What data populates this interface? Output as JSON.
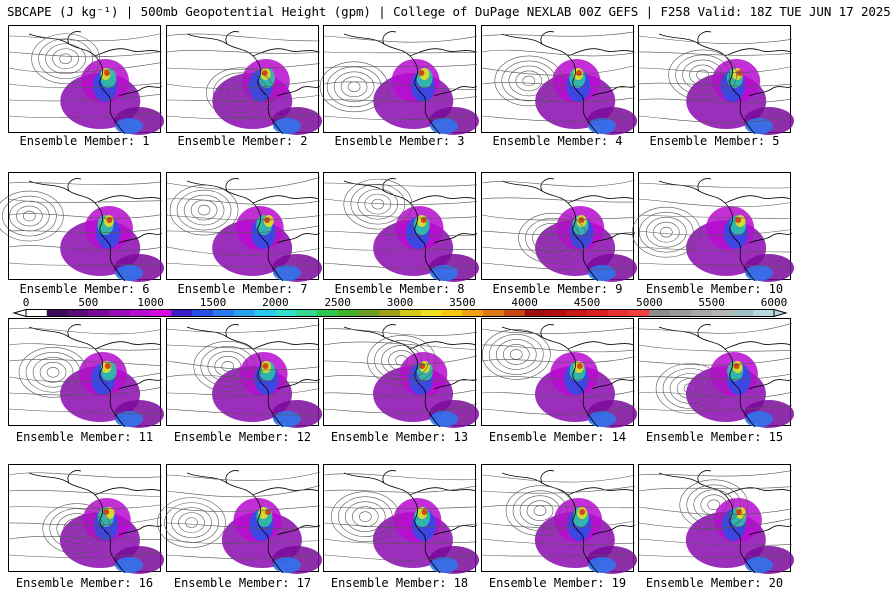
{
  "title": "SBCAPE (J kg⁻¹) | 500mb Geopotential Height (gpm) | College of DuPage NEXLAB 00Z GEFS | F258 Valid: 18Z TUE JUN 17 2025",
  "members": [
    "Ensemble Member: 1",
    "Ensemble Member: 2",
    "Ensemble Member: 3",
    "Ensemble Member: 4",
    "Ensemble Member: 5",
    "Ensemble Member: 6",
    "Ensemble Member: 7",
    "Ensemble Member: 8",
    "Ensemble Member: 9",
    "Ensemble Member: 10",
    "Ensemble Member: 11",
    "Ensemble Member: 12",
    "Ensemble Member: 13",
    "Ensemble Member: 14",
    "Ensemble Member: 15",
    "Ensemble Member: 16",
    "Ensemble Member: 17",
    "Ensemble Member: 18",
    "Ensemble Member: 19",
    "Ensemble Member: 20"
  ],
  "colorbar": {
    "labels": [
      "0",
      "500",
      "1000",
      "1500",
      "2000",
      "2500",
      "3000",
      "3500",
      "4000",
      "4500",
      "5000",
      "5500",
      "6000"
    ],
    "colors": [
      "#ffffff",
      "#3a0a55",
      "#5b0a7a",
      "#7a0a9a",
      "#9a0ab8",
      "#b80ad0",
      "#d60ae0",
      "#3c1ec8",
      "#2850e6",
      "#2c78f0",
      "#28a0f0",
      "#28c8f0",
      "#30e0c8",
      "#34d890",
      "#2cc850",
      "#40b428",
      "#6ea020",
      "#a0a018",
      "#d8c818",
      "#f0e020",
      "#f8c810",
      "#f0a010",
      "#e07810",
      "#c84810",
      "#a01010",
      "#b41010",
      "#c81818",
      "#dc2020",
      "#e83030",
      "#f04040",
      "#8c8c8c",
      "#9a9a9a",
      "#a8a8a8",
      "#b4b4b4",
      "#a0c0c8",
      "#b8d8e0"
    ]
  }
}
